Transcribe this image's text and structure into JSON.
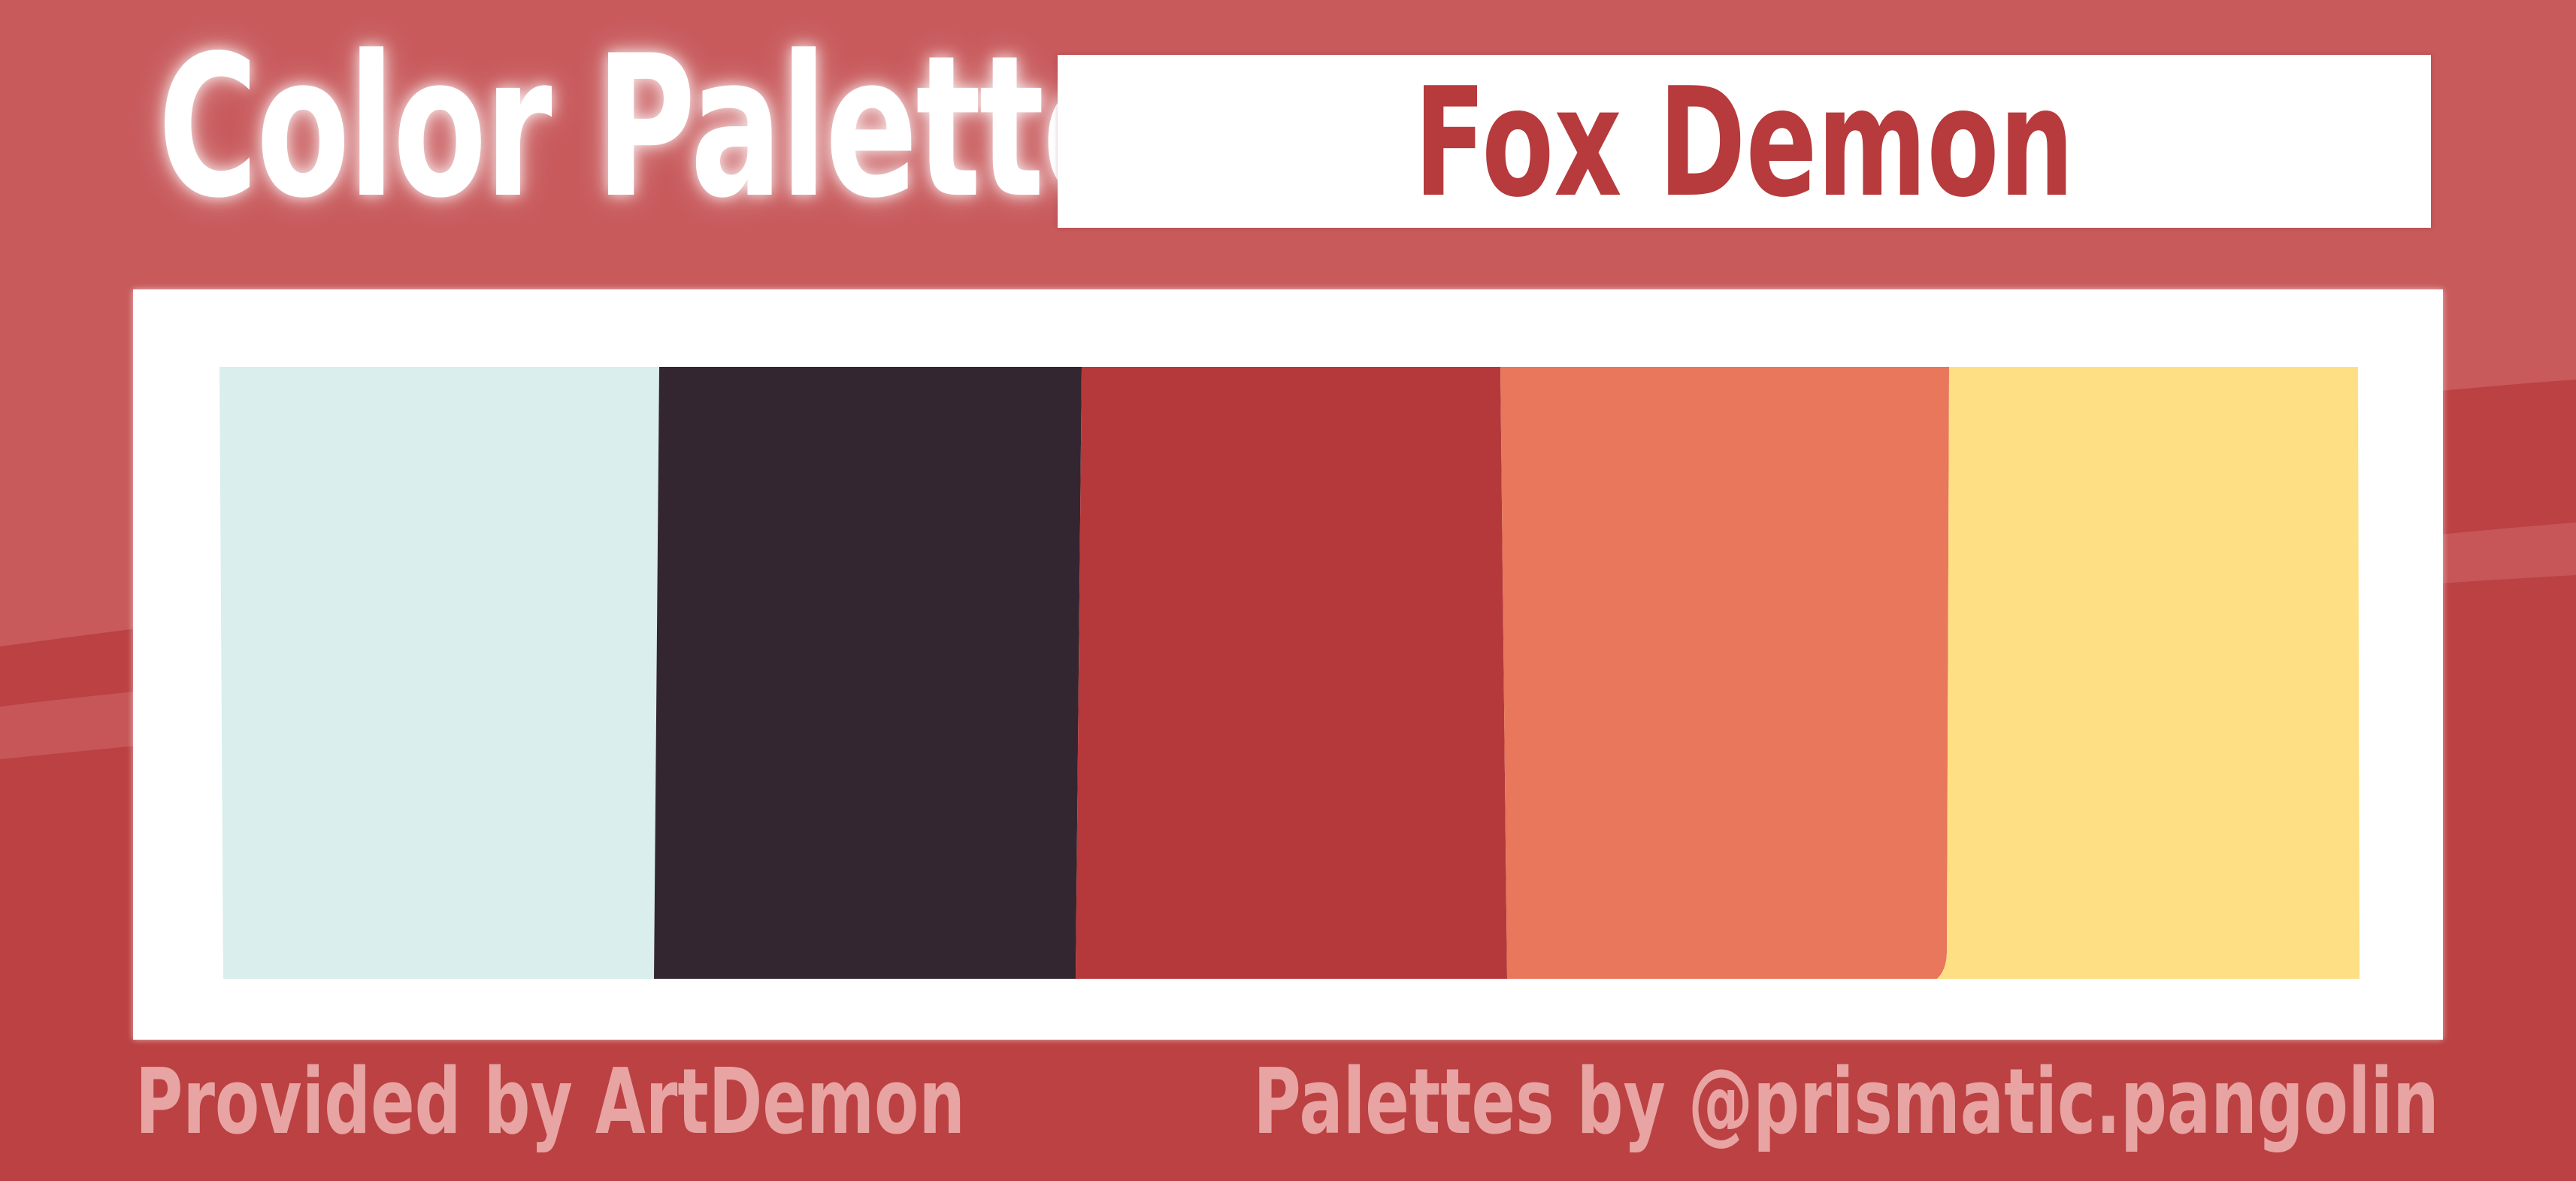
{
  "header": {
    "title": "Color Palette",
    "palette_name": "Fox Demon"
  },
  "palette": {
    "swatches": [
      {
        "name": "pale-aqua",
        "color": "#d9eeed"
      },
      {
        "name": "dark-plum",
        "color": "#332630"
      },
      {
        "name": "crimson",
        "color": "#b5393b"
      },
      {
        "name": "coral",
        "color": "#e8775b"
      },
      {
        "name": "butter-yellow",
        "color": "#fedf83"
      }
    ]
  },
  "footer": {
    "provided_by": "Provided by ArtDemon",
    "palettes_by": "Palettes by @prismatic.pangolin"
  },
  "theme": {
    "background": "#c85a5c",
    "wave": "#bb4142",
    "accent_text": "#b73a3c",
    "muted_text": "#e7a4a3"
  }
}
